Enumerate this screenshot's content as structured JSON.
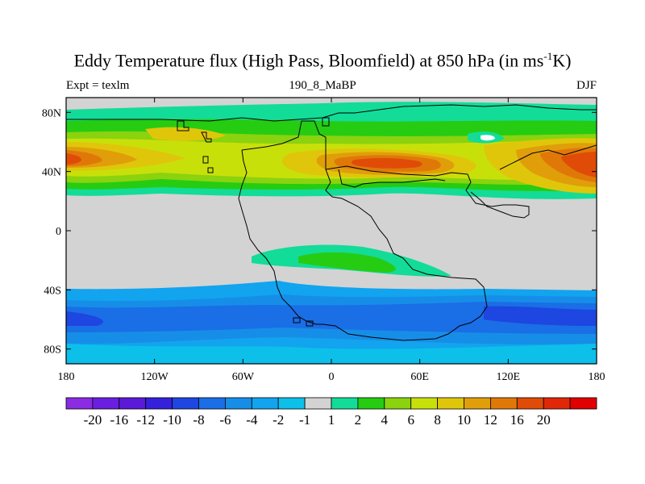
{
  "title": {
    "main": "Eddy Temperature flux (High Pass, Bloomfield) at 850 hPa (in ms",
    "sup": "-1",
    "tail": "K)"
  },
  "subtitle_left": "Expt = texlm",
  "subtitle_center": "190_8_MaBP",
  "subtitle_right": "DJF",
  "map": {
    "type": "filled-contour-map",
    "projection": "cylindrical-equidistant",
    "lon_range": [
      -180,
      180
    ],
    "lat_range": [
      -90,
      90
    ],
    "x_ticks": [
      {
        "lon": -180,
        "label": "180"
      },
      {
        "lon": -120,
        "label": "120W"
      },
      {
        "lon": -60,
        "label": "60W"
      },
      {
        "lon": 0,
        "label": "0"
      },
      {
        "lon": 60,
        "label": "60E"
      },
      {
        "lon": 120,
        "label": "120E"
      },
      {
        "lon": 180,
        "label": "180"
      }
    ],
    "y_ticks": [
      {
        "lat": 80,
        "label": "80N"
      },
      {
        "lat": 40,
        "label": "40N"
      },
      {
        "lat": 0,
        "label": "0"
      },
      {
        "lat": -40,
        "label": "40S"
      },
      {
        "lat": -80,
        "label": "80S"
      }
    ],
    "background_color": "#d3d3d3"
  },
  "colorbar": {
    "colors": [
      "#8b2be2",
      "#6a1fe0",
      "#5a1ad8",
      "#3520dc",
      "#1e46e0",
      "#1a6ee6",
      "#168ee8",
      "#12a4ee",
      "#0cc0ea",
      "#d3d3d3",
      "#13dc98",
      "#25cc12",
      "#8bd20f",
      "#c8e00a",
      "#e0c60a",
      "#e09e0a",
      "#e07808",
      "#e04c08",
      "#e02808",
      "#e00000"
    ],
    "labels": [
      "-20",
      "-16",
      "-12",
      "-10",
      "-8",
      "-6",
      "-4",
      "-2",
      "-1",
      "1",
      "2",
      "4",
      "6",
      "8",
      "10",
      "12",
      "16",
      "20"
    ]
  }
}
